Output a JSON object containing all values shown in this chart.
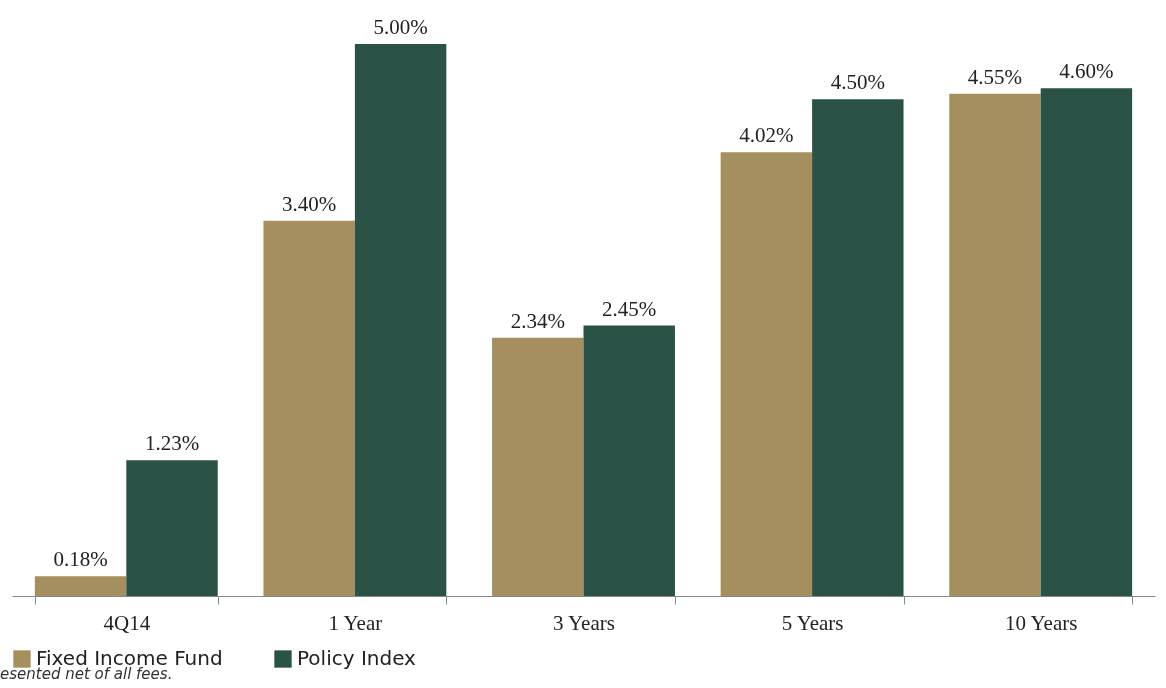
{
  "chart_data": {
    "type": "bar",
    "categories": [
      "4Q14",
      "1 Year",
      "3 Years",
      "5 Years",
      "10 Years"
    ],
    "series": [
      {
        "name": "Fixed Income Fund",
        "color": "#a58f5f",
        "values": [
          0.18,
          3.4,
          2.34,
          4.02,
          4.55
        ],
        "value_labels": [
          "0.18%",
          "3.40%",
          "2.34%",
          "4.02%",
          "4.55%"
        ]
      },
      {
        "name": "Policy Index",
        "color": "#2a5246",
        "values": [
          1.23,
          5.0,
          2.45,
          4.5,
          4.6
        ],
        "value_labels": [
          "1.23%",
          "5.00%",
          "2.45%",
          "4.50%",
          "4.60%"
        ]
      }
    ],
    "legend": "bottom",
    "grid": false,
    "tick_labels": "x",
    "annotations": [
      "esented net of all fees."
    ]
  }
}
